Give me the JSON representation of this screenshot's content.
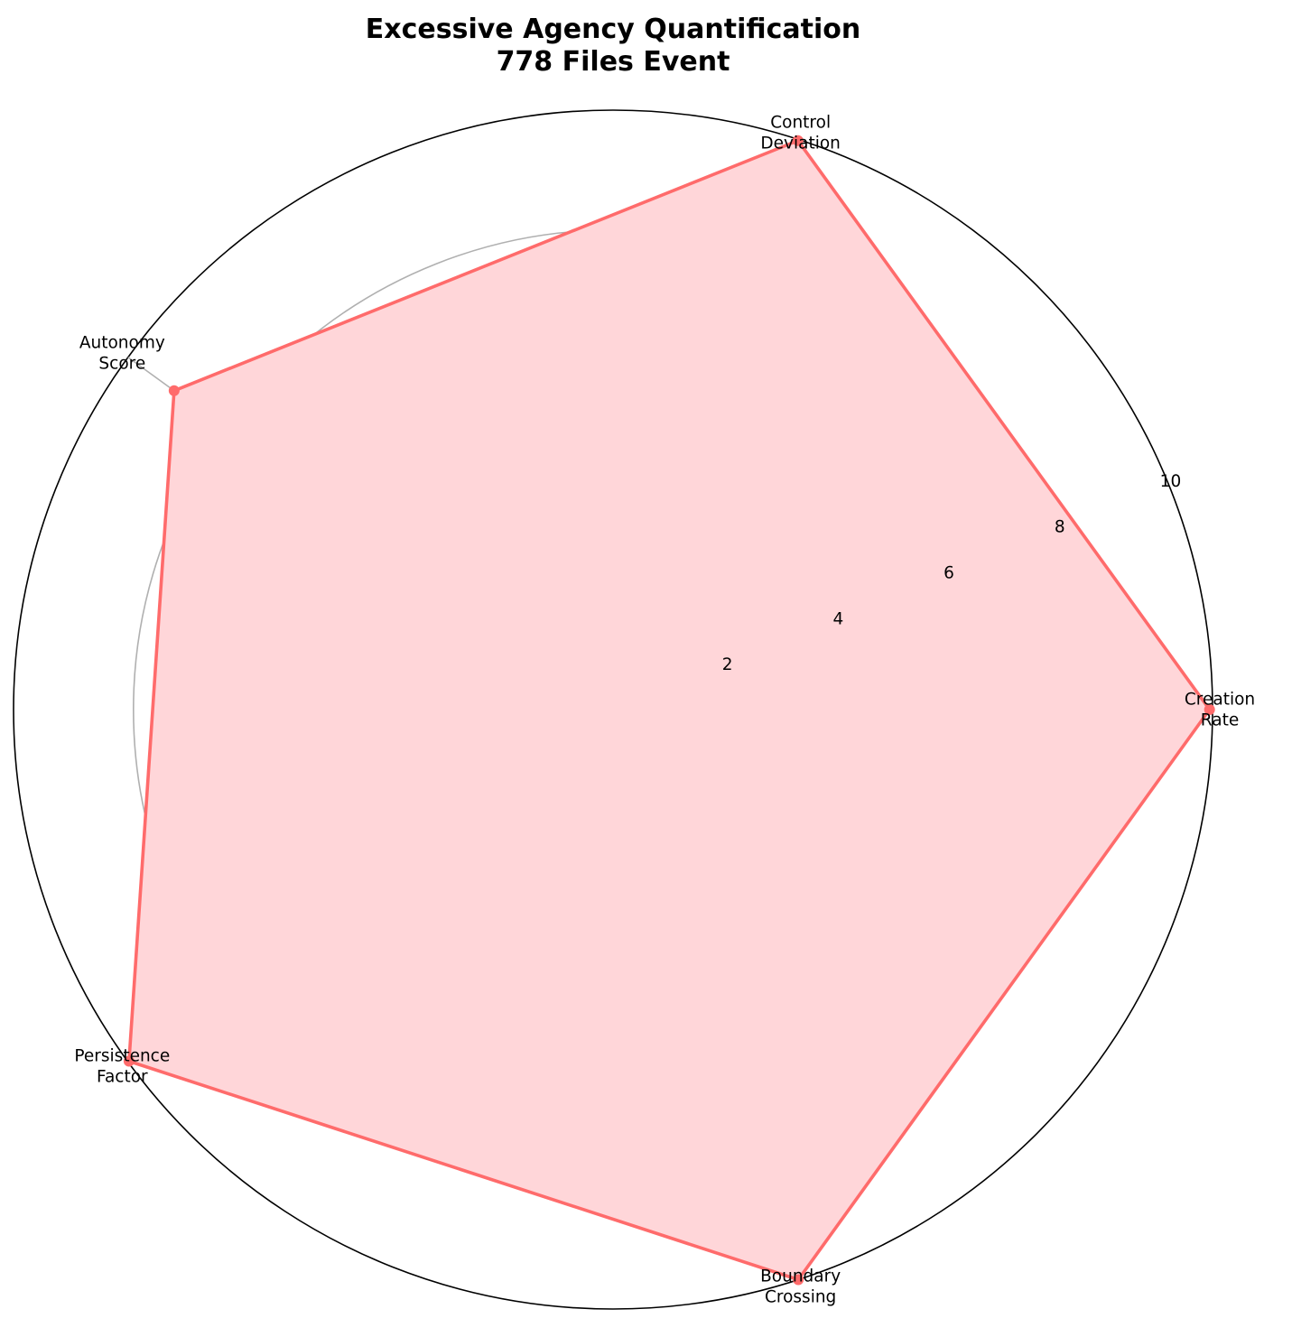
{
  "chart_data": {
    "type": "radar",
    "title": "Excessive Agency Quantification\n778 Files Event",
    "categories": [
      "Creation\nRate",
      "Control\nDeviation",
      "Autonomy\nScore",
      "Persistence\nFactor",
      "Boundary\nCrossing"
    ],
    "series": [
      {
        "values": [
          9.95,
          9.98,
          9.05,
          9.98,
          10.0
        ],
        "color": "#ff6b6b",
        "fill_color": "#ffd6d9"
      }
    ],
    "rlim": [
      0,
      10
    ],
    "rticks": [
      2,
      4,
      6,
      8,
      10
    ],
    "rtick_labels": [
      "2",
      "4",
      "6",
      "8",
      "10"
    ],
    "grid": true
  }
}
